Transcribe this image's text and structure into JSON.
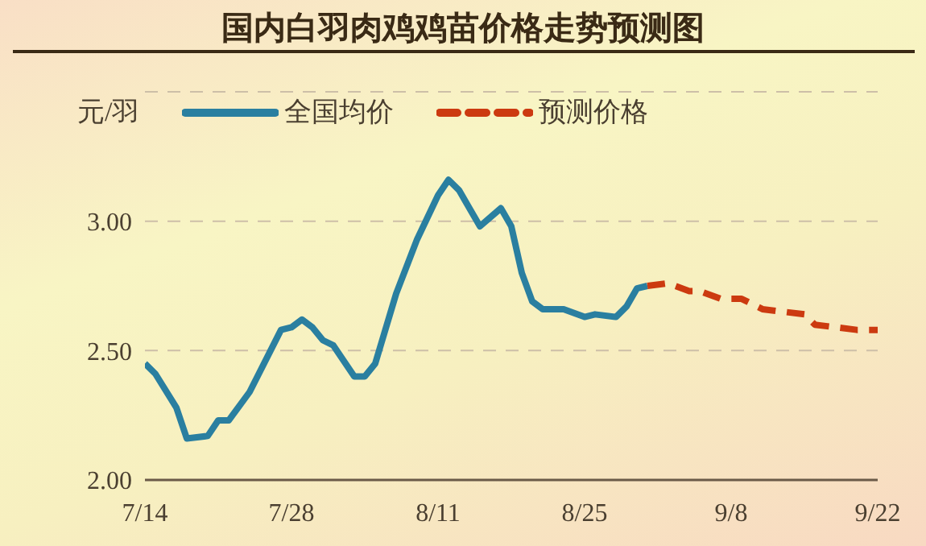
{
  "chart_data": {
    "type": "line",
    "title": "国内白羽肉鸡鸡苗价格走势预测图",
    "ylabel": "元/羽",
    "legend": "top left",
    "grid": "y",
    "xlim": [
      "--07-14",
      "--09-22"
    ],
    "xticks": [
      {
        "value": "--07-14",
        "label": "7/14"
      },
      {
        "value": "--07-28",
        "label": "7/28"
      },
      {
        "value": "--08-11",
        "label": "8/11"
      },
      {
        "value": "--08-25",
        "label": "8/25"
      },
      {
        "value": "--09-08",
        "label": "9/8"
      },
      {
        "value": "--09-22",
        "label": "9/22"
      }
    ],
    "ylim": [
      2,
      3.5
    ],
    "yticks": [
      {
        "value": 2,
        "label": "2.00"
      },
      {
        "value": 2.5,
        "label": "2.50"
      },
      {
        "value": 3,
        "label": "3.00"
      },
      {
        "value": 3.5,
        "label": null
      }
    ],
    "series": [
      {
        "name": "全国均价",
        "color": "#2a7fa0",
        "line_style": "solid",
        "x": [
          "--07-14",
          "--07-15",
          "--07-17",
          "--07-18",
          "--07-20",
          "--07-21",
          "--07-22",
          "--07-24",
          "--07-27",
          "--07-28",
          "--07-29",
          "--07-30",
          "--07-31",
          "--08-01",
          "--08-03",
          "--08-04",
          "--08-05",
          "--08-07",
          "--08-09",
          "--08-11",
          "--08-12",
          "--08-13",
          "--08-15",
          "--08-17",
          "--08-18",
          "--08-19",
          "--08-20",
          "--08-21",
          "--08-23",
          "--08-25",
          "--08-26",
          "--08-28",
          "--08-29",
          "--08-30",
          "--08-31"
        ],
        "values": [
          2.45,
          2.41,
          2.28,
          2.16,
          2.17,
          2.23,
          2.23,
          2.34,
          2.58,
          2.59,
          2.62,
          2.59,
          2.54,
          2.52,
          2.4,
          2.4,
          2.45,
          2.72,
          2.93,
          3.1,
          3.16,
          3.12,
          2.98,
          3.05,
          2.98,
          2.8,
          2.69,
          2.66,
          2.66,
          2.63,
          2.64,
          2.63,
          2.67,
          2.74,
          2.75
        ]
      },
      {
        "name": "预测价格",
        "color": "#cc3a10",
        "line_style": "dashed",
        "x": [
          "--08-31",
          "--09-02",
          "--09-04",
          "--09-05",
          "--09-07",
          "--09-09",
          "--09-11",
          "--09-13",
          "--09-15",
          "--09-16",
          "--09-18",
          "--09-20",
          "--09-22"
        ],
        "values": [
          2.75,
          2.76,
          2.73,
          2.73,
          2.7,
          2.7,
          2.66,
          2.65,
          2.64,
          2.6,
          2.59,
          2.58,
          2.58
        ]
      }
    ]
  }
}
